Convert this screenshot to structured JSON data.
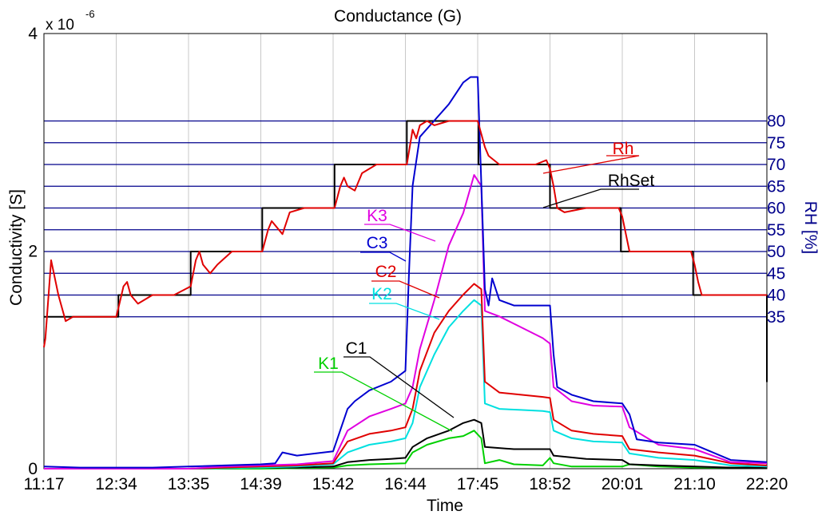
{
  "chart_data": {
    "type": "line",
    "title": "Conductance (G)",
    "xlabel": "Time",
    "ylabel": "Conductivity [S]",
    "y_exponent": "x 10",
    "y_exponent_power": "-6",
    "ylim": [
      0,
      4
    ],
    "y_ticks": [
      "0",
      "2",
      "4"
    ],
    "y2label": "RH [%]",
    "y2_ticks": [
      "35",
      "40",
      "45",
      "50",
      "55",
      "60",
      "65",
      "70",
      "75",
      "80"
    ],
    "x_ticks": [
      "11:17",
      "12:34",
      "13:35",
      "14:39",
      "15:42",
      "16:44",
      "17:45",
      "18:52",
      "20:01",
      "21:10",
      "22:20"
    ],
    "grid": true,
    "colors": {
      "RhSet": "#000000",
      "Rh": "#e00000",
      "C3": "#0000d0",
      "K3": "#e000e0",
      "C2": "#e00000",
      "K2": "#00e0e0",
      "C1": "#000000",
      "K1": "#00d000",
      "rh_lines": "#00008b"
    },
    "series": [
      {
        "name": "RhSet",
        "axis": "right",
        "x": [
          0,
          1.03,
          1.03,
          2.03,
          2.03,
          3.02,
          3.02,
          4.02,
          4.02,
          5.02,
          5.02,
          6.01,
          6.01,
          7.0,
          7.0,
          7.98,
          7.98,
          8.98,
          8.98,
          10.0,
          10.0
        ],
        "values": [
          35,
          35,
          40,
          40,
          50,
          50,
          60,
          60,
          70,
          70,
          80,
          80,
          70,
          70,
          60,
          60,
          50,
          50,
          40,
          40,
          20
        ]
      },
      {
        "name": "Rh",
        "axis": "right",
        "x": [
          0,
          0.02,
          0.1,
          0.2,
          0.3,
          0.35,
          0.4,
          0.5,
          0.6,
          0.8,
          1.0,
          1.03,
          1.1,
          1.15,
          1.2,
          1.3,
          1.5,
          1.8,
          2.03,
          2.1,
          2.15,
          2.2,
          2.3,
          2.4,
          2.6,
          3.02,
          3.1,
          3.15,
          3.2,
          3.3,
          3.4,
          3.6,
          4.02,
          4.1,
          4.15,
          4.2,
          4.3,
          4.4,
          4.6,
          5.02,
          5.1,
          5.15,
          5.2,
          5.3,
          5.4,
          5.6,
          5.8,
          6.0,
          6.05,
          6.1,
          6.15,
          6.3,
          6.5,
          6.8,
          6.95,
          7.0,
          7.05,
          7.1,
          7.2,
          7.5,
          7.8,
          7.95,
          8.0,
          8.05,
          8.1,
          8.3,
          8.6,
          8.95,
          9.0,
          9.05,
          9.1,
          9.3,
          9.6,
          10.0
        ],
        "values": [
          28,
          30,
          48,
          40,
          34,
          34.5,
          35,
          35,
          35,
          35,
          35,
          37,
          42,
          43,
          40,
          38,
          40,
          40,
          42,
          48,
          50,
          47,
          45,
          47,
          50,
          50,
          55,
          57,
          56,
          54,
          59,
          60,
          60,
          65,
          67,
          65,
          64,
          68,
          70,
          70,
          78,
          76,
          79,
          80,
          79,
          80,
          80,
          80,
          77,
          74,
          72,
          70,
          70,
          70,
          71,
          69,
          65,
          60,
          59,
          60,
          60,
          60,
          58,
          54,
          50,
          50,
          50,
          50,
          47,
          43,
          40,
          40,
          40,
          40
        ]
      },
      {
        "name": "C3",
        "axis": "left",
        "x": [
          0,
          0.5,
          1.0,
          1.5,
          2.0,
          2.5,
          3.0,
          3.2,
          3.3,
          3.5,
          4.0,
          4.2,
          4.3,
          4.5,
          4.8,
          5.0,
          5.05,
          5.1,
          5.2,
          5.4,
          5.6,
          5.8,
          5.9,
          6.0,
          6.1,
          6.15,
          6.2,
          6.3,
          6.5,
          6.9,
          7.0,
          7.05,
          7.1,
          7.3,
          7.6,
          8.0,
          8.1,
          8.2,
          8.5,
          9.0,
          9.5,
          10.0
        ],
        "values": [
          0.02,
          0.01,
          0.01,
          0.01,
          0.02,
          0.03,
          0.04,
          0.05,
          0.15,
          0.12,
          0.16,
          0.55,
          0.62,
          0.72,
          0.8,
          0.9,
          1.8,
          2.6,
          3.05,
          3.2,
          3.35,
          3.55,
          3.6,
          3.6,
          1.65,
          1.5,
          1.75,
          1.55,
          1.5,
          1.5,
          1.5,
          1.05,
          0.75,
          0.68,
          0.62,
          0.6,
          0.5,
          0.27,
          0.24,
          0.22,
          0.08,
          0.06
        ]
      },
      {
        "name": "K3",
        "axis": "left",
        "x": [
          0,
          1.0,
          2.0,
          2.5,
          3.0,
          3.5,
          4.0,
          4.2,
          4.5,
          4.8,
          5.0,
          5.1,
          5.2,
          5.4,
          5.6,
          5.8,
          5.95,
          6.05,
          6.1,
          6.3,
          6.6,
          6.9,
          7.0,
          7.05,
          7.3,
          7.6,
          8.0,
          8.1,
          8.5,
          9.0,
          9.5,
          10.0
        ],
        "values": [
          0,
          0,
          0,
          0.02,
          0.03,
          0.04,
          0.07,
          0.35,
          0.48,
          0.55,
          0.6,
          0.75,
          1.1,
          1.55,
          2.05,
          2.35,
          2.7,
          2.6,
          1.45,
          1.4,
          1.3,
          1.2,
          1.15,
          0.75,
          0.62,
          0.58,
          0.57,
          0.38,
          0.22,
          0.18,
          0.06,
          0.05
        ]
      },
      {
        "name": "C2",
        "axis": "left",
        "x": [
          0,
          1.0,
          2.0,
          2.5,
          3.0,
          3.5,
          4.0,
          4.2,
          4.5,
          4.8,
          5.0,
          5.1,
          5.2,
          5.4,
          5.6,
          5.8,
          5.95,
          6.05,
          6.1,
          6.3,
          6.6,
          6.9,
          7.0,
          7.05,
          7.3,
          7.6,
          8.0,
          8.1,
          8.5,
          9.0,
          9.5,
          10.0
        ],
        "values": [
          0,
          0,
          0,
          0.01,
          0.02,
          0.03,
          0.05,
          0.25,
          0.32,
          0.35,
          0.38,
          0.55,
          0.9,
          1.25,
          1.45,
          1.6,
          1.7,
          1.65,
          0.8,
          0.7,
          0.68,
          0.66,
          0.65,
          0.45,
          0.35,
          0.32,
          0.3,
          0.18,
          0.15,
          0.12,
          0.05,
          0.03
        ]
      },
      {
        "name": "K2",
        "axis": "left",
        "x": [
          0,
          1.0,
          2.0,
          3.0,
          3.5,
          4.0,
          4.2,
          4.5,
          4.8,
          5.0,
          5.1,
          5.2,
          5.4,
          5.6,
          5.8,
          5.95,
          6.05,
          6.1,
          6.3,
          6.6,
          6.9,
          7.0,
          7.05,
          7.3,
          7.6,
          8.0,
          8.1,
          8.5,
          9.0,
          9.5,
          10.0
        ],
        "values": [
          0,
          0,
          0,
          0.01,
          0.02,
          0.04,
          0.15,
          0.22,
          0.25,
          0.28,
          0.42,
          0.75,
          1.05,
          1.3,
          1.45,
          1.55,
          1.5,
          0.6,
          0.55,
          0.54,
          0.53,
          0.52,
          0.35,
          0.28,
          0.25,
          0.24,
          0.14,
          0.1,
          0.08,
          0.03,
          0.02
        ]
      },
      {
        "name": "C1",
        "axis": "left",
        "x": [
          0,
          1.0,
          2.0,
          3.0,
          3.5,
          4.0,
          4.2,
          4.5,
          4.8,
          5.0,
          5.1,
          5.3,
          5.6,
          5.8,
          5.95,
          6.05,
          6.1,
          6.5,
          7.0,
          7.05,
          7.5,
          8.0,
          8.1,
          8.5,
          9.0,
          9.5,
          10.0
        ],
        "values": [
          0,
          0,
          0,
          0.01,
          0.01,
          0.02,
          0.06,
          0.08,
          0.09,
          0.1,
          0.2,
          0.28,
          0.35,
          0.42,
          0.45,
          0.42,
          0.2,
          0.18,
          0.18,
          0.12,
          0.09,
          0.08,
          0.04,
          0.03,
          0.02,
          0.01,
          0.01
        ]
      },
      {
        "name": "K1",
        "axis": "left",
        "x": [
          0,
          1.0,
          2.0,
          3.0,
          4.0,
          4.2,
          4.5,
          5.0,
          5.1,
          5.3,
          5.6,
          5.8,
          5.95,
          6.05,
          6.1,
          6.3,
          6.5,
          6.9,
          7.0,
          7.05,
          7.3,
          7.6,
          8.0,
          8.1,
          8.5,
          9.0,
          10.0
        ],
        "values": [
          0,
          0,
          0,
          0,
          0.01,
          0.03,
          0.04,
          0.05,
          0.15,
          0.22,
          0.28,
          0.3,
          0.35,
          0.28,
          0.05,
          0.08,
          0.04,
          0.03,
          0.1,
          0.05,
          0.02,
          0.02,
          0.02,
          0.04,
          0.02,
          0.01,
          0.01
        ]
      }
    ],
    "labels": [
      {
        "name": "Rh",
        "color": "#e00000"
      },
      {
        "name": "RhSet",
        "color": "#000000"
      },
      {
        "name": "K3",
        "color": "#e000e0"
      },
      {
        "name": "C3",
        "color": "#0000d0"
      },
      {
        "name": "C2",
        "color": "#e00000"
      },
      {
        "name": "K2",
        "color": "#00e0e0"
      },
      {
        "name": "C1",
        "color": "#000000"
      },
      {
        "name": "K1",
        "color": "#00d000"
      }
    ]
  }
}
